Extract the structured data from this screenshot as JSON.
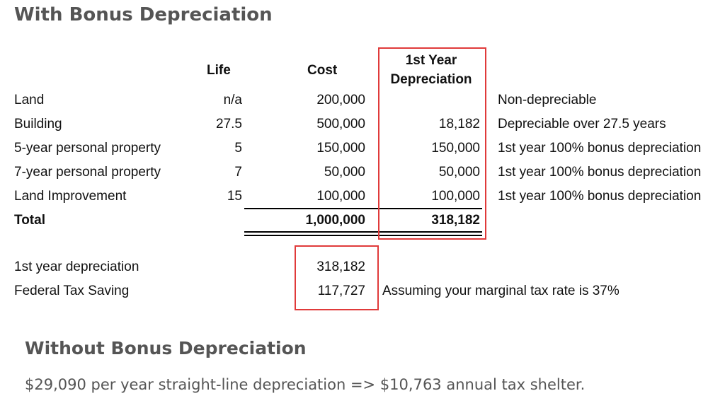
{
  "headings": {
    "with_bonus": "With Bonus Depreciation",
    "without_bonus": "Without Bonus Depreciation"
  },
  "table": {
    "columns": {
      "life": "Life",
      "cost": "Cost",
      "dep_line1": "1st Year",
      "dep_line2": "Depreciation"
    },
    "rows": [
      {
        "label": "Land",
        "life": "n/a",
        "cost": "200,000",
        "dep": "",
        "note": "Non-depreciable"
      },
      {
        "label": "Building",
        "life": "27.5",
        "cost": "500,000",
        "dep": "18,182",
        "note": "Depreciable over 27.5 years"
      },
      {
        "label": "5-year personal property",
        "life": "5",
        "cost": "150,000",
        "dep": "150,000",
        "note": "1st year 100% bonus depreciation"
      },
      {
        "label": "7-year personal property",
        "life": "7",
        "cost": "50,000",
        "dep": "50,000",
        "note": "1st year 100% bonus depreciation"
      },
      {
        "label": "Land Improvement",
        "life": "15",
        "cost": "100,000",
        "dep": "100,000",
        "note": "1st year 100% bonus depreciation"
      }
    ],
    "total": {
      "label": "Total",
      "cost": "1,000,000",
      "dep": "318,182"
    }
  },
  "summary": [
    {
      "label": "1st year depreciation",
      "value": "318,182",
      "note": ""
    },
    {
      "label": "Federal Tax Saving",
      "value": "117,727",
      "note": "Assuming your marginal tax rate is 37%"
    }
  ],
  "without_bonus_text": "$29,090 per year straight-line depreciation => $10,763 annual tax shelter.",
  "colors": {
    "heading": "#555555",
    "highlight": "#e03a3a",
    "text": "#111111"
  }
}
